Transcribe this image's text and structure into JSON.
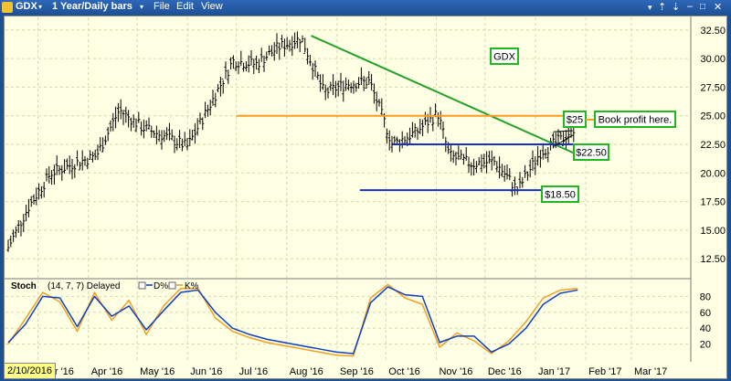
{
  "window": {
    "symbol": "GDX",
    "period": "1 Year/Daily bars",
    "menu": [
      "File",
      "Edit",
      "View"
    ],
    "cursor_date": "2/10/2016"
  },
  "colors": {
    "background": "#ffffe4",
    "bars": "#000000",
    "downtrend": "#22a12a",
    "resistance": "#ff9a1f",
    "support": "#1830c8",
    "label_border": "#1fb81f",
    "d_line": "#1040c0",
    "k_line": "#f0a020"
  },
  "chart_data": [
    {
      "type": "bar",
      "title": "GDX",
      "x_labels": [
        "Mar '16",
        "Apr '16",
        "May '16",
        "Jun '16",
        "Jul '16",
        "Aug '16",
        "Sep '16",
        "Oct '16",
        "Nov '16",
        "Dec '16",
        "Jan '17",
        "Feb '17",
        "Mar '17"
      ],
      "y_ticks": [
        "12.50",
        "15.00",
        "17.50",
        "20.00",
        "22.50",
        "25.00",
        "27.50",
        "30.00",
        "32.50"
      ],
      "ylim": [
        11.0,
        33.6
      ],
      "grid": true,
      "series": [
        {
          "x": [
            "2016-02-10",
            "2016-02-24",
            "2016-03-09",
            "2016-03-23",
            "2016-04-06",
            "2016-04-20",
            "2016-05-04",
            "2016-05-18",
            "2016-06-01",
            "2016-06-15",
            "2016-06-29",
            "2016-07-13",
            "2016-07-27",
            "2016-08-10",
            "2016-08-24",
            "2016-09-07",
            "2016-09-21",
            "2016-10-05",
            "2016-10-19",
            "2016-11-02",
            "2016-11-09",
            "2016-11-23",
            "2016-12-07",
            "2016-12-21",
            "2017-01-04",
            "2017-01-18",
            "2017-01-25"
          ],
          "values": [
            13.0,
            17.0,
            20.0,
            20.8,
            21.5,
            25.5,
            24.0,
            23.2,
            22.3,
            26.0,
            29.8,
            29.5,
            31.0,
            31.8,
            27.0,
            27.8,
            28.0,
            22.5,
            23.5,
            25.2,
            21.5,
            20.8,
            21.0,
            18.5,
            21.8,
            23.0,
            24.0
          ]
        }
      ],
      "annotations": [
        {
          "label": "$25",
          "value": 25.0
        },
        {
          "label": "Book profit here.",
          "value": 25.0
        },
        {
          "label": "$22.50",
          "value": 22.5
        },
        {
          "label": "$18.50",
          "value": 18.5
        },
        {
          "label": "GDX",
          "value": null
        }
      ]
    },
    {
      "type": "line",
      "title": "Stoch",
      "params": "(14, 7, 7) Delayed",
      "y_ticks": [
        "20",
        "40",
        "60",
        "80"
      ],
      "ylim": [
        0,
        100
      ],
      "grid": true,
      "series": [
        {
          "name": "D%",
          "values": [
            22,
            45,
            80,
            78,
            42,
            80,
            55,
            68,
            38,
            62,
            85,
            88,
            60,
            40,
            32,
            26,
            22,
            18,
            14,
            10,
            8,
            72,
            92,
            82,
            80,
            22,
            30,
            30,
            10,
            20,
            40,
            70,
            84,
            88
          ]
        },
        {
          "name": "K%",
          "values": [
            20,
            52,
            85,
            73,
            36,
            85,
            50,
            75,
            32,
            68,
            90,
            90,
            53,
            36,
            28,
            22,
            18,
            14,
            10,
            6,
            5,
            78,
            95,
            78,
            70,
            16,
            34,
            24,
            8,
            24,
            48,
            78,
            88,
            90
          ]
        }
      ]
    }
  ]
}
